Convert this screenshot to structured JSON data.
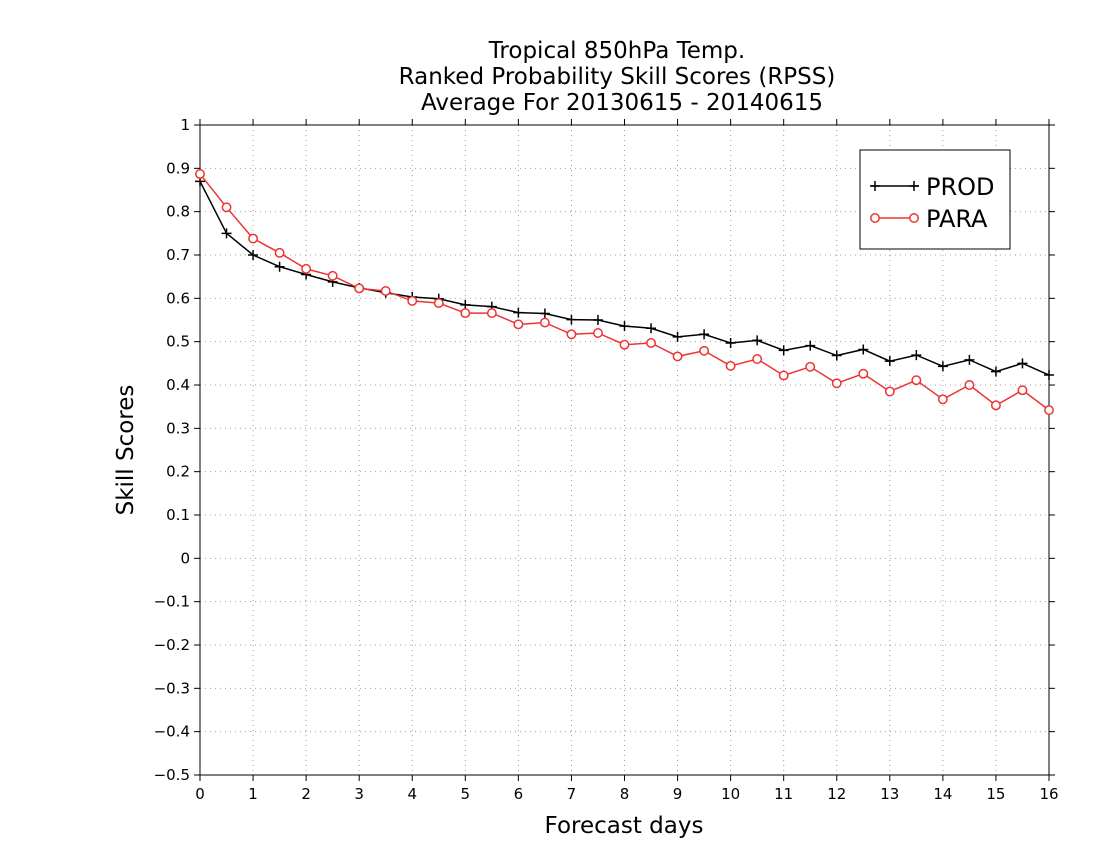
{
  "chart_data": {
    "type": "line",
    "title": [
      "Tropical 850hPa Temp.",
      "Ranked Probability Skill Scores (RPSS)",
      "Average For 20130615 - 20140615"
    ],
    "xlabel": "Forecast days",
    "ylabel": "Skill Scores",
    "xlim": [
      0,
      16
    ],
    "ylim": [
      -0.5,
      1
    ],
    "xticks": [
      0,
      1,
      2,
      3,
      4,
      5,
      6,
      7,
      8,
      9,
      10,
      11,
      12,
      13,
      14,
      15,
      16
    ],
    "yticks": [
      -0.5,
      -0.4,
      -0.3,
      -0.2,
      -0.1,
      0,
      0.1,
      0.2,
      0.3,
      0.4,
      0.5,
      0.6,
      0.7,
      0.8,
      0.9,
      1
    ],
    "ytick_labels": [
      "−0.5",
      "−0.4",
      "−0.3",
      "−0.2",
      "−0.1",
      "0",
      "0.1",
      "0.2",
      "0.3",
      "0.4",
      "0.5",
      "0.6",
      "0.7",
      "0.8",
      "0.9",
      "1"
    ],
    "grid": true,
    "legend_position": "top-right",
    "x": [
      0,
      0.5,
      1,
      1.5,
      2,
      2.5,
      3,
      3.5,
      4,
      4.5,
      5,
      5.5,
      6,
      6.5,
      7,
      7.5,
      8,
      8.5,
      9,
      9.5,
      10,
      10.5,
      11,
      11.5,
      12,
      12.5,
      13,
      13.5,
      14,
      14.5,
      15,
      15.5,
      16
    ],
    "series": [
      {
        "name": "PROD",
        "color": "#000000",
        "marker": "plus",
        "values": [
          0.87,
          0.75,
          0.7,
          0.673,
          0.655,
          0.638,
          0.624,
          0.613,
          0.603,
          0.599,
          0.585,
          0.581,
          0.567,
          0.565,
          0.551,
          0.55,
          0.536,
          0.531,
          0.511,
          0.517,
          0.497,
          0.503,
          0.48,
          0.491,
          0.468,
          0.482,
          0.455,
          0.469,
          0.443,
          0.458,
          0.431,
          0.45,
          0.423
        ]
      },
      {
        "name": "PARA",
        "color": "#ee3333",
        "marker": "circle",
        "values": [
          0.887,
          0.81,
          0.738,
          0.705,
          0.668,
          0.652,
          0.623,
          0.617,
          0.594,
          0.589,
          0.566,
          0.566,
          0.54,
          0.544,
          0.517,
          0.52,
          0.493,
          0.497,
          0.466,
          0.479,
          0.444,
          0.46,
          0.422,
          0.442,
          0.404,
          0.426,
          0.385,
          0.411,
          0.367,
          0.4,
          0.353,
          0.388,
          0.342
        ]
      }
    ]
  }
}
